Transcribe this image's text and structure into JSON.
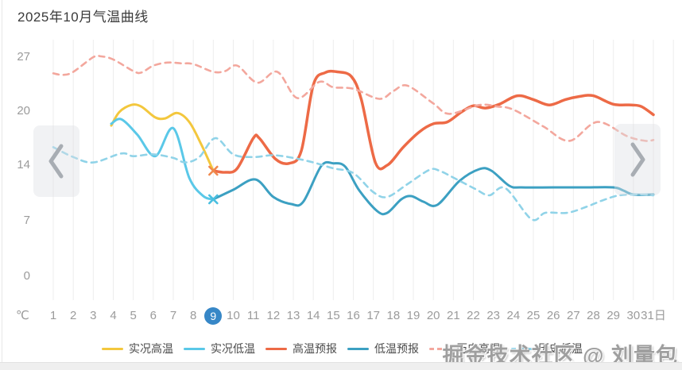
{
  "header": {
    "title": "2025年10月气温曲线"
  },
  "y_axis": {
    "unit": "℃",
    "ticks": [
      27,
      20,
      14,
      7,
      0
    ]
  },
  "x_axis": {
    "suffix": "日",
    "selected_day": 9
  },
  "nav": {
    "prev": "chevron-left",
    "next": "chevron-right"
  },
  "watermark": "掘金技术社区 @ 刘量包",
  "colors": {
    "actual_high": "#F3C73D",
    "actual_low": "#5AC8E8",
    "forecast_high": "#ED6A46",
    "forecast_low": "#3CA0C2",
    "hist_high": "#F3A79D",
    "hist_low": "#90D3E8",
    "selected_day_badge": "#3787C7",
    "grid": "#EDEDED",
    "axis_text": "#9B9B9B"
  },
  "legend": [
    {
      "label": "实况高温",
      "color": "#F3C73D",
      "dashed": false
    },
    {
      "label": "实况低温",
      "color": "#5AC8E8",
      "dashed": false
    },
    {
      "label": "高温预报",
      "color": "#ED6A46",
      "dashed": false
    },
    {
      "label": "低温预报",
      "color": "#3CA0C2",
      "dashed": false
    },
    {
      "label": "历史高温",
      "color": "#F3A79D",
      "dashed": true
    },
    {
      "label": "历史低温",
      "color": "#90D3E8",
      "dashed": true
    }
  ],
  "chart_data": {
    "type": "line",
    "title": "2025年10月气温曲线",
    "x": [
      1,
      2,
      3,
      4,
      5,
      6,
      7,
      8,
      9,
      10,
      11,
      12,
      13,
      14,
      15,
      16,
      17,
      18,
      19,
      20,
      21,
      22,
      23,
      24,
      25,
      26,
      27,
      28,
      29,
      30,
      31
    ],
    "xlabel": "日",
    "ylabel": "℃",
    "ylim": [
      0,
      27
    ],
    "y_ticks": [
      0,
      7,
      14,
      20,
      27
    ],
    "grid": "vertical",
    "legend_position": "bottom",
    "series": [
      {
        "name": "实况高温",
        "key": "actual-high",
        "color": "#F3C73D",
        "dashed": false,
        "width": 3,
        "points": [
          [
            3.9,
            18.4
          ],
          [
            4.3,
            19.9
          ],
          [
            4.9,
            20.8
          ],
          [
            5.4,
            20.6
          ],
          [
            6.1,
            19.3
          ],
          [
            6.6,
            19.2
          ],
          [
            7.2,
            19.8
          ],
          [
            7.8,
            18.8
          ],
          [
            8.4,
            16.3
          ],
          [
            9,
            13.3
          ]
        ]
      },
      {
        "name": "实况低温",
        "key": "actual-low",
        "color": "#5AC8E8",
        "dashed": false,
        "width": 3,
        "points": [
          [
            3.9,
            18.6
          ],
          [
            4.4,
            19.1
          ],
          [
            5.2,
            17.4
          ],
          [
            6.1,
            15.0
          ],
          [
            7.0,
            18.1
          ],
          [
            7.8,
            12.4
          ],
          [
            8.5,
            10.1
          ],
          [
            9,
            9.7
          ]
        ]
      },
      {
        "name": "高温预报",
        "key": "forecast-high",
        "color": "#ED6A46",
        "dashed": false,
        "width": 3.5,
        "points": [
          [
            9,
            13.3
          ],
          [
            9.6,
            13.1
          ],
          [
            10.2,
            13.6
          ],
          [
            11,
            17.0
          ],
          [
            11.3,
            17.0
          ],
          [
            12.1,
            14.7
          ],
          [
            12.8,
            14.2
          ],
          [
            13.4,
            15.6
          ],
          [
            14,
            23.4
          ],
          [
            14.6,
            25.0
          ],
          [
            15.2,
            25.1
          ],
          [
            15.9,
            24.5
          ],
          [
            16.4,
            21.5
          ],
          [
            17.1,
            14.3
          ],
          [
            17.7,
            14.0
          ],
          [
            18.5,
            16.0
          ],
          [
            19.3,
            17.7
          ],
          [
            20,
            18.6
          ],
          [
            20.7,
            18.8
          ],
          [
            21.4,
            19.9
          ],
          [
            22,
            20.7
          ],
          [
            22.6,
            20.4
          ],
          [
            23.3,
            20.9
          ],
          [
            24.2,
            22.0
          ],
          [
            25,
            21.5
          ],
          [
            25.8,
            20.8
          ],
          [
            26.6,
            21.5
          ],
          [
            27.3,
            21.9
          ],
          [
            28,
            22.0
          ],
          [
            29,
            20.9
          ],
          [
            29.9,
            20.8
          ],
          [
            30.4,
            20.6
          ],
          [
            31,
            19.6
          ]
        ]
      },
      {
        "name": "低温预报",
        "key": "forecast-low",
        "color": "#3CA0C2",
        "dashed": false,
        "width": 3,
        "points": [
          [
            9,
            9.7
          ],
          [
            10,
            10.9
          ],
          [
            11.1,
            12.2
          ],
          [
            12,
            10.0
          ],
          [
            12.9,
            9.1
          ],
          [
            13.5,
            9.4
          ],
          [
            14.4,
            13.9
          ],
          [
            15,
            14.2
          ],
          [
            15.6,
            13.8
          ],
          [
            16.3,
            10.8
          ],
          [
            17.2,
            8.2
          ],
          [
            17.7,
            8.0
          ],
          [
            18.4,
            9.7
          ],
          [
            18.9,
            10.1
          ],
          [
            19.5,
            9.4
          ],
          [
            20.2,
            9.0
          ],
          [
            21.3,
            12.0
          ],
          [
            22.3,
            13.5
          ],
          [
            22.9,
            13.3
          ],
          [
            23.8,
            11.4
          ],
          [
            24.4,
            11.2
          ],
          [
            26,
            11.2
          ],
          [
            27.5,
            11.2
          ],
          [
            29,
            11.2
          ],
          [
            29.5,
            10.8
          ],
          [
            30,
            10.3
          ],
          [
            31,
            10.3
          ]
        ]
      },
      {
        "name": "历史高温",
        "key": "hist-high",
        "color": "#F3A79D",
        "dashed": true,
        "width": 2.6,
        "points": [
          [
            1,
            24.9
          ],
          [
            1.5,
            24.7
          ],
          [
            2,
            25.1
          ],
          [
            3,
            27.0
          ],
          [
            3.4,
            27.1
          ],
          [
            4,
            26.7
          ],
          [
            5,
            25.2
          ],
          [
            5.4,
            25.0
          ],
          [
            6,
            25.9
          ],
          [
            6.7,
            26.3
          ],
          [
            7.4,
            26.2
          ],
          [
            8,
            26.1
          ],
          [
            9,
            25.1
          ],
          [
            9.6,
            25.2
          ],
          [
            10.2,
            25.9
          ],
          [
            11.2,
            23.7
          ],
          [
            12.2,
            25.1
          ],
          [
            13.2,
            21.7
          ],
          [
            14.3,
            23.8
          ],
          [
            15,
            23.1
          ],
          [
            16,
            22.9
          ],
          [
            17.3,
            21.6
          ],
          [
            18,
            22.6
          ],
          [
            18.7,
            23.3
          ],
          [
            20,
            21.0
          ],
          [
            20.8,
            19.7
          ],
          [
            22.3,
            20.8
          ],
          [
            23.2,
            20.6
          ],
          [
            24,
            20.2
          ],
          [
            25.5,
            18.3
          ],
          [
            26.8,
            16.7
          ],
          [
            28.2,
            18.8
          ],
          [
            29.7,
            17.2
          ],
          [
            30.6,
            16.7
          ],
          [
            31,
            16.8
          ]
        ]
      },
      {
        "name": "历史低温",
        "key": "hist-low",
        "color": "#90D3E8",
        "dashed": true,
        "width": 2.6,
        "points": [
          [
            1,
            16.0
          ],
          [
            2,
            14.9
          ],
          [
            3,
            14.3
          ],
          [
            4.4,
            15.3
          ],
          [
            5,
            15.0
          ],
          [
            6,
            15.2
          ],
          [
            7,
            14.8
          ],
          [
            7.6,
            14.3
          ],
          [
            8.3,
            14.9
          ],
          [
            9.1,
            17.0
          ],
          [
            10,
            15.2
          ],
          [
            11,
            14.9
          ],
          [
            12,
            15.1
          ],
          [
            13,
            14.8
          ],
          [
            14,
            14.3
          ],
          [
            15,
            13.6
          ],
          [
            16,
            13.0
          ],
          [
            17,
            10.6
          ],
          [
            17.7,
            10.0
          ],
          [
            18.7,
            11.6
          ],
          [
            19.8,
            13.4
          ],
          [
            20.3,
            13.3
          ],
          [
            21.1,
            12.3
          ],
          [
            22.1,
            11.0
          ],
          [
            22.8,
            10.2
          ],
          [
            23.6,
            11.1
          ],
          [
            24.9,
            7.2
          ],
          [
            25.6,
            8.0
          ],
          [
            26.7,
            8.0
          ],
          [
            27.7,
            8.8
          ],
          [
            28.5,
            9.6
          ],
          [
            29.3,
            10.2
          ],
          [
            30.4,
            10.3
          ],
          [
            31,
            10.2
          ]
        ]
      }
    ],
    "markers": [
      {
        "name": "forecast-start-high",
        "day": 9,
        "temp": 13.3,
        "color": "#F0884C"
      },
      {
        "name": "forecast-start-low",
        "day": 9,
        "temp": 9.7,
        "color": "#49BFE0"
      }
    ]
  }
}
